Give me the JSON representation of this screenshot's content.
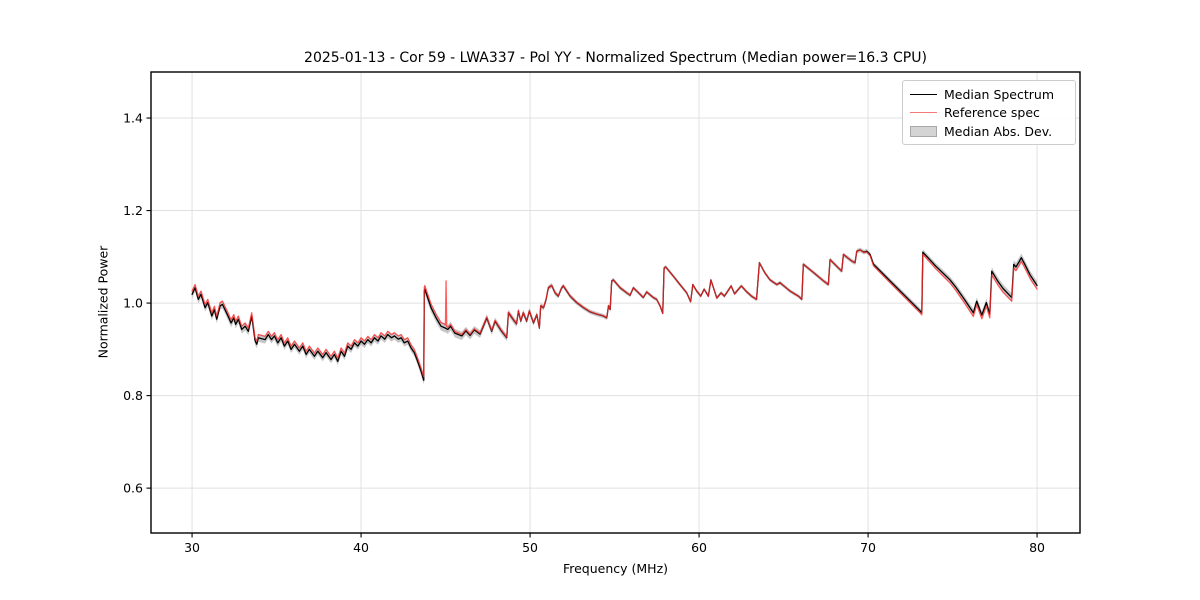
{
  "figure": {
    "background": "#ffffff"
  },
  "chart_data": {
    "type": "line",
    "title": "2025-01-13 - Cor 59 - LWA337 - Pol YY - Normalized Spectrum (Median power=16.3 CPU)",
    "xlabel": "Frequency (MHz)",
    "ylabel": "Normalized Power",
    "xlim": [
      27.57,
      82.54
    ],
    "ylim": [
      0.503,
      1.4995
    ],
    "xticks": [
      30,
      40,
      50,
      60,
      70,
      80
    ],
    "xtick_labels": [
      "30",
      "40",
      "50",
      "60",
      "70",
      "80"
    ],
    "yticks": [
      0.6,
      0.8,
      1.0,
      1.2,
      1.4
    ],
    "ytick_labels": [
      "0.6",
      "0.8",
      "1.0",
      "1.2",
      "1.4"
    ],
    "grid": true,
    "grid_color": "#e0e0e0",
    "axes_edge_color": "#000000",
    "legend": {
      "position": "upper right",
      "entries": [
        {
          "label": "Median Spectrum",
          "type": "line",
          "color": "#000000"
        },
        {
          "label": "Reference spec",
          "type": "line",
          "color": "#f47a7a"
        },
        {
          "label": "Median Abs. Dev.",
          "type": "patch",
          "fill": "#d4d4d4",
          "edge": "#a8a8a8"
        }
      ]
    },
    "series": [
      {
        "name": "Median Spectrum",
        "type": "line",
        "color": "#000000",
        "width": 1.3,
        "points": [
          [
            30.0,
            1.019
          ],
          [
            30.18,
            1.033
          ],
          [
            30.37,
            1.008
          ],
          [
            30.53,
            1.019
          ],
          [
            30.77,
            0.99
          ],
          [
            30.93,
            1.001
          ],
          [
            31.17,
            0.972
          ],
          [
            31.32,
            0.986
          ],
          [
            31.46,
            0.965
          ],
          [
            31.66,
            0.994
          ],
          [
            31.8,
            0.997
          ],
          [
            32.05,
            0.978
          ],
          [
            32.31,
            0.957
          ],
          [
            32.47,
            0.968
          ],
          [
            32.58,
            0.954
          ],
          [
            32.74,
            0.965
          ],
          [
            32.94,
            0.943
          ],
          [
            33.14,
            0.95
          ],
          [
            33.33,
            0.939
          ],
          [
            33.53,
            0.972
          ],
          [
            33.73,
            0.918
          ],
          [
            33.83,
            0.911
          ],
          [
            33.92,
            0.925
          ],
          [
            34.32,
            0.921
          ],
          [
            34.51,
            0.932
          ],
          [
            34.7,
            0.921
          ],
          [
            34.87,
            0.929
          ],
          [
            35.07,
            0.914
          ],
          [
            35.27,
            0.925
          ],
          [
            35.46,
            0.907
          ],
          [
            35.66,
            0.918
          ],
          [
            35.86,
            0.9
          ],
          [
            36.06,
            0.911
          ],
          [
            36.35,
            0.896
          ],
          [
            36.55,
            0.907
          ],
          [
            36.75,
            0.889
          ],
          [
            36.94,
            0.9
          ],
          [
            37.24,
            0.885
          ],
          [
            37.44,
            0.896
          ],
          [
            37.73,
            0.882
          ],
          [
            37.93,
            0.893
          ],
          [
            38.22,
            0.878
          ],
          [
            38.42,
            0.889
          ],
          [
            38.62,
            0.874
          ],
          [
            38.82,
            0.896
          ],
          [
            39.02,
            0.885
          ],
          [
            39.21,
            0.907
          ],
          [
            39.41,
            0.9
          ],
          [
            39.61,
            0.914
          ],
          [
            39.81,
            0.907
          ],
          [
            40.0,
            0.918
          ],
          [
            40.2,
            0.911
          ],
          [
            40.4,
            0.921
          ],
          [
            40.6,
            0.914
          ],
          [
            40.79,
            0.925
          ],
          [
            41.0,
            0.918
          ],
          [
            41.18,
            0.929
          ],
          [
            41.4,
            0.922
          ],
          [
            41.58,
            0.932
          ],
          [
            41.8,
            0.925
          ],
          [
            41.97,
            0.929
          ],
          [
            42.2,
            0.922
          ],
          [
            42.37,
            0.925
          ],
          [
            42.56,
            0.914
          ],
          [
            42.76,
            0.918
          ],
          [
            42.96,
            0.903
          ],
          [
            43.15,
            0.893
          ],
          [
            43.35,
            0.874
          ],
          [
            43.55,
            0.853
          ],
          [
            43.71,
            0.833
          ],
          [
            43.74,
            1.026
          ],
          [
            43.77,
            1.03
          ],
          [
            44.14,
            0.99
          ],
          [
            44.44,
            0.968
          ],
          [
            44.73,
            0.95
          ],
          [
            44.93,
            0.947
          ],
          [
            45.13,
            0.943
          ],
          [
            45.3,
            0.95
          ],
          [
            45.55,
            0.935
          ],
          [
            45.96,
            0.929
          ],
          [
            46.2,
            0.94
          ],
          [
            46.45,
            0.93
          ],
          [
            46.7,
            0.942
          ],
          [
            47.04,
            0.933
          ],
          [
            47.44,
            0.968
          ],
          [
            47.73,
            0.939
          ],
          [
            47.93,
            0.961
          ],
          [
            48.3,
            0.94
          ],
          [
            48.62,
            0.925
          ],
          [
            48.72,
            0.979
          ],
          [
            49.05,
            0.962
          ],
          [
            49.2,
            0.955
          ],
          [
            49.31,
            0.983
          ],
          [
            49.45,
            0.961
          ],
          [
            49.6,
            0.979
          ],
          [
            49.8,
            0.961
          ],
          [
            49.96,
            0.983
          ],
          [
            50.2,
            0.957
          ],
          [
            50.4,
            0.975
          ],
          [
            50.55,
            0.946
          ],
          [
            50.63,
            0.994
          ],
          [
            50.8,
            0.99
          ],
          [
            50.95,
            1.008
          ],
          [
            51.08,
            1.033
          ],
          [
            51.28,
            1.038
          ],
          [
            51.48,
            1.022
          ],
          [
            51.67,
            1.015
          ],
          [
            51.87,
            1.033
          ],
          [
            51.97,
            1.037
          ],
          [
            52.37,
            1.015
          ],
          [
            52.76,
            1.001
          ],
          [
            53.16,
            0.99
          ],
          [
            53.55,
            0.981
          ],
          [
            53.95,
            0.976
          ],
          [
            54.34,
            0.972
          ],
          [
            54.54,
            0.968
          ],
          [
            54.64,
            0.994
          ],
          [
            54.74,
            0.986
          ],
          [
            54.83,
            1.048
          ],
          [
            54.93,
            1.05
          ],
          [
            55.33,
            1.033
          ],
          [
            55.72,
            1.022
          ],
          [
            55.92,
            1.017
          ],
          [
            56.11,
            1.033
          ],
          [
            56.51,
            1.019
          ],
          [
            56.7,
            1.012
          ],
          [
            56.9,
            1.024
          ],
          [
            57.29,
            1.012
          ],
          [
            57.49,
            1.008
          ],
          [
            57.69,
            0.994
          ],
          [
            57.85,
            0.978
          ],
          [
            57.93,
            1.076
          ],
          [
            58.03,
            1.078
          ],
          [
            58.48,
            1.058
          ],
          [
            58.87,
            1.04
          ],
          [
            59.27,
            1.022
          ],
          [
            59.5,
            1.003
          ],
          [
            59.63,
            1.04
          ],
          [
            59.86,
            1.026
          ],
          [
            60.1,
            1.015
          ],
          [
            60.3,
            1.03
          ],
          [
            60.55,
            1.015
          ],
          [
            60.7,
            1.05
          ],
          [
            61.05,
            1.011
          ],
          [
            61.3,
            1.022
          ],
          [
            61.5,
            1.015
          ],
          [
            61.9,
            1.037
          ],
          [
            62.1,
            1.02
          ],
          [
            62.5,
            1.037
          ],
          [
            62.8,
            1.025
          ],
          [
            63.1,
            1.015
          ],
          [
            63.4,
            1.008
          ],
          [
            63.57,
            1.087
          ],
          [
            63.9,
            1.065
          ],
          [
            64.2,
            1.05
          ],
          [
            64.6,
            1.04
          ],
          [
            64.79,
            1.044
          ],
          [
            65.38,
            1.026
          ],
          [
            65.88,
            1.015
          ],
          [
            66.08,
            1.008
          ],
          [
            66.17,
            1.084
          ],
          [
            66.77,
            1.066
          ],
          [
            67.36,
            1.048
          ],
          [
            67.65,
            1.04
          ],
          [
            67.75,
            1.094
          ],
          [
            68.24,
            1.076
          ],
          [
            68.44,
            1.069
          ],
          [
            68.54,
            1.105
          ],
          [
            69.03,
            1.091
          ],
          [
            69.23,
            1.087
          ],
          [
            69.33,
            1.112
          ],
          [
            69.53,
            1.115
          ],
          [
            69.75,
            1.11
          ],
          [
            69.92,
            1.112
          ],
          [
            70.12,
            1.105
          ],
          [
            70.32,
            1.084
          ],
          [
            71.3,
            1.048
          ],
          [
            72.29,
            1.012
          ],
          [
            73.08,
            0.983
          ],
          [
            73.18,
            0.979
          ],
          [
            73.24,
            1.11
          ],
          [
            73.6,
            1.096
          ],
          [
            74.0,
            1.08
          ],
          [
            74.4,
            1.066
          ],
          [
            74.85,
            1.05
          ],
          [
            75.2,
            1.034
          ],
          [
            75.7,
            1.008
          ],
          [
            76.23,
            0.979
          ],
          [
            76.43,
            1.004
          ],
          [
            76.73,
            0.974
          ],
          [
            77.0,
            1.001
          ],
          [
            77.2,
            0.976
          ],
          [
            77.32,
            1.069
          ],
          [
            77.7,
            1.046
          ],
          [
            78.0,
            1.031
          ],
          [
            78.5,
            1.012
          ],
          [
            78.62,
            1.084
          ],
          [
            78.75,
            1.078
          ],
          [
            78.95,
            1.09
          ],
          [
            79.07,
            1.098
          ],
          [
            79.3,
            1.082
          ],
          [
            79.6,
            1.06
          ],
          [
            80.0,
            1.038
          ]
        ]
      },
      {
        "name": "Reference spec",
        "type": "line",
        "color": "rgba(255,45,45,0.78)",
        "width": 1.3,
        "derived_from": "Median Spectrum",
        "offset_breakpoints": [
          [
            27.57,
            0.007
          ],
          [
            43.6,
            0.007
          ],
          [
            43.8,
            0.008
          ],
          [
            44.9,
            0.008
          ],
          [
            45.2,
            0.004
          ],
          [
            47.0,
            0.002
          ],
          [
            50.0,
            0.001
          ],
          [
            58.0,
            0.0
          ],
          [
            69.5,
            0.0
          ],
          [
            70.5,
            -0.004
          ],
          [
            73.1,
            -0.004
          ],
          [
            73.4,
            -0.005
          ],
          [
            76.0,
            -0.008
          ],
          [
            82.54,
            -0.008
          ]
        ],
        "extra_points": [
          [
            44.99,
            0.953
          ],
          [
            45.03,
            1.048
          ],
          [
            45.07,
            0.949
          ]
        ]
      },
      {
        "name": "Median Abs. Dev.",
        "type": "band",
        "color": "#808080",
        "opacity": 0.45,
        "around": "Median Spectrum",
        "halfwidth_breakpoints": [
          [
            27.57,
            0.008
          ],
          [
            33.0,
            0.009
          ],
          [
            36.0,
            0.008
          ],
          [
            43.0,
            0.008
          ],
          [
            43.9,
            0.01
          ],
          [
            46.0,
            0.009
          ],
          [
            49.0,
            0.007
          ],
          [
            52.0,
            0.005
          ],
          [
            58.0,
            0.004
          ],
          [
            66.0,
            0.004
          ],
          [
            70.0,
            0.005
          ],
          [
            73.0,
            0.006
          ],
          [
            76.0,
            0.008
          ],
          [
            78.5,
            0.009
          ],
          [
            82.54,
            0.009
          ]
        ]
      }
    ]
  }
}
